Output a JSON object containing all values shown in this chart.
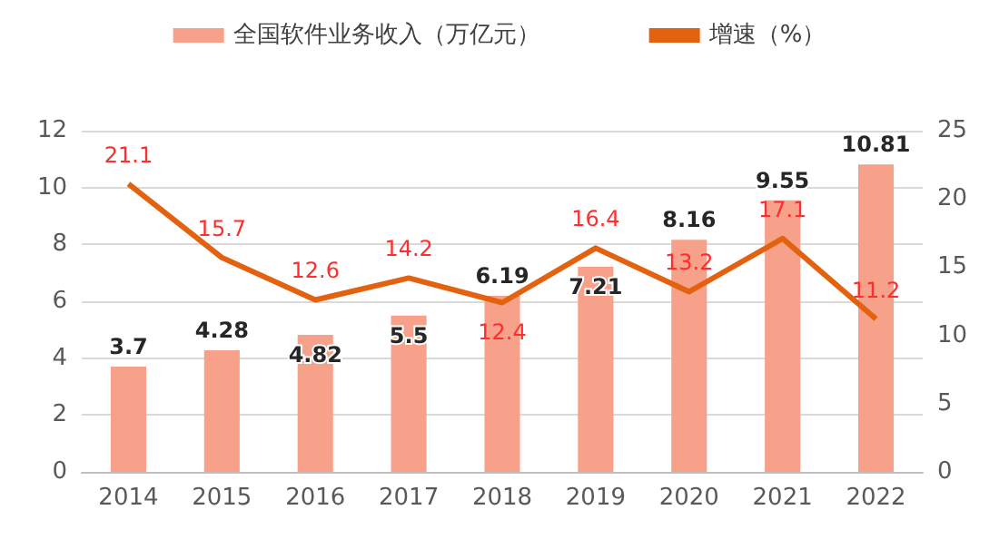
{
  "chart_data": {
    "type": "bar",
    "categories": [
      "2014",
      "2015",
      "2016",
      "2017",
      "2018",
      "2019",
      "2020",
      "2021",
      "2022"
    ],
    "series": [
      {
        "name": "全国软件业务收入（万亿元）",
        "color": "#f7a08a",
        "values": [
          3.7,
          4.28,
          4.82,
          5.5,
          6.19,
          7.21,
          8.16,
          9.55,
          10.81
        ]
      },
      {
        "name": "增速（%）",
        "type": "line",
        "axis": "y2",
        "color": "#e2620f",
        "values": [
          21.1,
          15.7,
          12.6,
          14.2,
          12.4,
          16.4,
          13.2,
          17.1,
          11.2
        ]
      }
    ],
    "ylim": [
      0,
      12
    ],
    "yticks": [
      0,
      2,
      4,
      6,
      8,
      10,
      12
    ],
    "y2lim": [
      0,
      25
    ],
    "y2ticks": [
      0,
      5,
      10,
      15,
      20,
      25
    ],
    "data_labels": true,
    "grid": "y",
    "legend": "top",
    "marker": "none"
  }
}
